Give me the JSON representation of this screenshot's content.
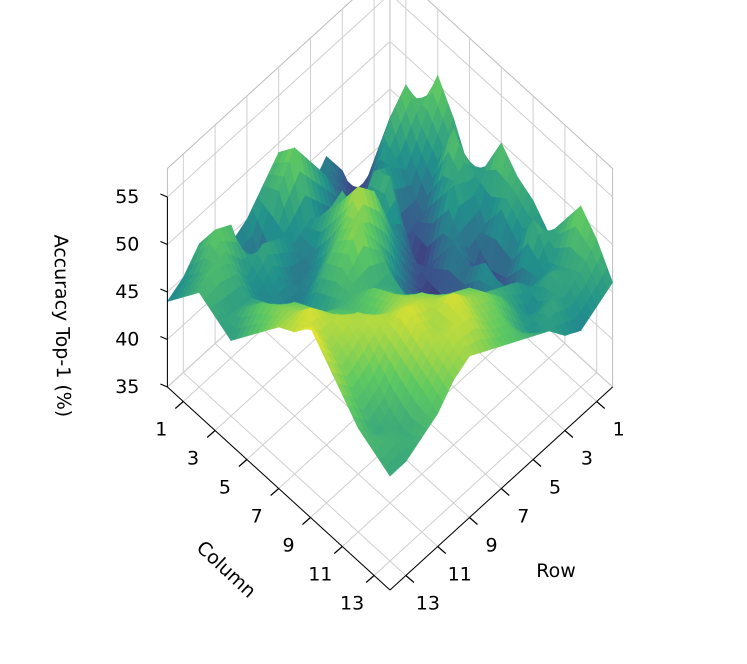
{
  "chart_data": {
    "type": "surface3d",
    "title": "",
    "xlabel": "Row",
    "ylabel": "Column",
    "zlabel": "Accuracy Top-1 (%)",
    "x_ticks": [
      "1",
      "3",
      "5",
      "7",
      "9",
      "11",
      "13"
    ],
    "y_ticks": [
      "1",
      "3",
      "5",
      "7",
      "9",
      "11",
      "13"
    ],
    "z_ticks": [
      "35",
      "40",
      "45",
      "50",
      "55"
    ],
    "x_range": [
      0,
      14
    ],
    "y_range": [
      0,
      14
    ],
    "zlim": [
      35,
      55
    ],
    "colormap": "viridis",
    "colormap_stops": [
      "#440154",
      "#3b528b",
      "#21918c",
      "#5ec962",
      "#fde725"
    ],
    "grid": true,
    "z_values": [
      [
        37,
        40,
        46,
        51,
        48,
        44,
        46,
        50,
        48,
        47,
        45,
        48,
        51,
        49,
        46
      ],
      [
        39,
        45,
        50,
        47,
        45,
        50,
        46,
        43,
        46,
        44,
        48,
        45,
        46,
        47,
        45
      ],
      [
        36,
        42,
        48,
        44,
        41,
        44,
        47,
        42,
        38,
        40,
        42,
        44,
        47,
        46,
        44
      ],
      [
        41,
        38,
        43,
        46,
        40,
        38,
        41,
        44,
        43,
        45,
        44,
        46,
        44,
        47,
        45
      ],
      [
        44,
        41,
        40,
        47,
        48,
        42,
        39,
        37,
        39,
        41,
        44,
        47,
        46,
        45,
        47
      ],
      [
        42,
        45,
        41,
        44,
        44,
        46,
        42,
        40,
        42,
        44,
        45,
        48,
        49,
        47,
        48
      ],
      [
        46,
        48,
        43,
        48,
        45,
        51,
        46,
        41,
        44,
        46,
        48,
        50,
        51,
        50,
        49
      ],
      [
        49,
        51,
        45,
        47,
        50,
        53,
        49,
        47,
        46,
        48,
        49,
        51,
        52,
        51,
        50
      ],
      [
        47,
        48,
        44,
        43,
        46,
        50,
        52,
        47,
        48,
        49,
        51,
        52,
        54,
        53,
        51
      ],
      [
        45,
        41,
        46,
        43,
        44,
        48,
        49,
        48,
        50,
        51,
        52,
        53,
        52,
        53,
        52
      ],
      [
        44,
        43,
        47,
        45,
        43,
        45,
        46,
        48,
        49,
        50,
        52,
        54,
        53,
        52,
        51
      ],
      [
        46,
        49,
        45,
        44,
        45,
        47,
        47,
        49,
        50,
        52,
        53,
        52,
        51,
        50,
        49
      ],
      [
        47,
        50,
        48,
        46,
        47,
        48,
        50,
        51,
        52,
        53,
        52,
        50,
        48,
        47,
        48
      ],
      [
        45,
        47,
        49,
        46,
        48,
        50,
        51,
        52,
        54,
        52,
        51,
        49,
        47,
        48,
        47
      ],
      [
        44,
        46,
        48,
        47,
        46,
        48,
        50,
        52,
        53,
        55,
        53,
        51,
        49,
        48,
        47
      ]
    ]
  }
}
